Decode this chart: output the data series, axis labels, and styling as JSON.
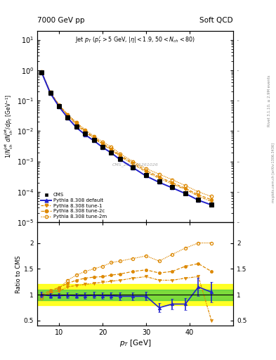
{
  "title_left": "7000 GeV pp",
  "title_right": "Soft QCD",
  "cms_label": "CMS_2013_I1261026",
  "rivet_label": "Rivet 3.1.10, ≥ 2.9M events",
  "mcplots_label": "mcplots.cern.ch [arXiv:1306.3436]",
  "xlabel": "p_{T} [GeV]",
  "ylabel_main": "1/N_{ch}^{jet} dN_{ch}^{jet}/dp_{T} [GeV^{-1}]",
  "ylabel_ratio": "Ratio to CMS",
  "annotation": "Jet p_{T} (p_{T}^{l}>5 GeV, |\\eta|<1.9, 50<N_{ch}<80)",
  "cms_x": [
    6,
    8,
    10,
    12,
    14,
    16,
    18,
    20,
    22,
    24,
    27,
    30,
    33,
    36,
    39,
    42,
    45
  ],
  "cms_y": [
    0.85,
    0.18,
    0.065,
    0.028,
    0.014,
    0.008,
    0.005,
    0.003,
    0.002,
    0.0012,
    0.00065,
    0.00035,
    0.00022,
    0.00014,
    9e-05,
    5.5e-05,
    3.8e-05
  ],
  "cms_yerr": [
    0.04,
    0.009,
    0.003,
    0.0015,
    0.0007,
    0.0004,
    0.00025,
    0.00015,
    0.0001,
    6e-05,
    3e-05,
    2e-05,
    1.2e-05,
    8e-06,
    5e-06,
    3e-06,
    2e-06
  ],
  "py_default_x": [
    6,
    8,
    10,
    12,
    14,
    16,
    18,
    20,
    22,
    24,
    27,
    30,
    33,
    36,
    39,
    42,
    45
  ],
  "py_default_y": [
    0.84,
    0.175,
    0.063,
    0.027,
    0.013,
    0.0075,
    0.0048,
    0.0029,
    0.0019,
    0.00115,
    0.00062,
    0.00033,
    0.000205,
    0.000135,
    8.8e-05,
    5.3e-05,
    3.7e-05
  ],
  "py_tune1_x": [
    6,
    8,
    10,
    12,
    14,
    16,
    18,
    20,
    22,
    24,
    27,
    30,
    33,
    36,
    39,
    42,
    45
  ],
  "py_tune1_y": [
    0.86,
    0.185,
    0.068,
    0.032,
    0.016,
    0.0092,
    0.0058,
    0.0036,
    0.0024,
    0.00145,
    0.00082,
    0.00045,
    0.00028,
    0.00018,
    0.00012,
    7.2e-05,
    4.8e-05
  ],
  "py_tune2c_x": [
    6,
    8,
    10,
    12,
    14,
    16,
    18,
    20,
    22,
    24,
    27,
    30,
    33,
    36,
    39,
    42,
    45
  ],
  "py_tune2c_y": [
    0.88,
    0.19,
    0.072,
    0.034,
    0.018,
    0.01,
    0.0062,
    0.0039,
    0.0026,
    0.00158,
    0.0009,
    0.0005,
    0.00031,
    0.0002,
    0.00013,
    8e-05,
    5.5e-05
  ],
  "py_tune2m_x": [
    6,
    8,
    10,
    12,
    14,
    16,
    18,
    20,
    22,
    24,
    27,
    30,
    33,
    36,
    39,
    42,
    45
  ],
  "py_tune2m_y": [
    0.87,
    0.185,
    0.07,
    0.035,
    0.019,
    0.011,
    0.0068,
    0.0044,
    0.003,
    0.0018,
    0.001,
    0.00058,
    0.00038,
    0.00025,
    0.00016,
    0.0001,
    7e-05
  ],
  "ratio_x": [
    6,
    8,
    10,
    12,
    14,
    16,
    18,
    20,
    22,
    24,
    27,
    30,
    33,
    36,
    39,
    42,
    45
  ],
  "ratio_default": [
    1.0,
    0.98,
    0.98,
    0.99,
    0.98,
    0.98,
    0.99,
    0.98,
    0.98,
    0.97,
    0.97,
    0.97,
    0.75,
    0.82,
    0.82,
    1.15,
    1.05
  ],
  "ratio_default_err": [
    0.05,
    0.05,
    0.05,
    0.05,
    0.05,
    0.06,
    0.06,
    0.06,
    0.06,
    0.07,
    0.07,
    0.08,
    0.09,
    0.1,
    0.12,
    0.18,
    0.2
  ],
  "ratio_tune1": [
    0.96,
    1.04,
    1.07,
    1.15,
    1.18,
    1.2,
    1.22,
    1.24,
    1.26,
    1.28,
    1.32,
    1.35,
    1.28,
    1.28,
    1.32,
    1.35,
    0.5
  ],
  "ratio_tune2c": [
    1.0,
    1.08,
    1.14,
    1.22,
    1.28,
    1.32,
    1.34,
    1.35,
    1.38,
    1.4,
    1.45,
    1.48,
    1.42,
    1.45,
    1.55,
    1.6,
    1.45
  ],
  "ratio_tune2m": [
    0.94,
    1.06,
    1.12,
    1.28,
    1.38,
    1.45,
    1.5,
    1.55,
    1.62,
    1.65,
    1.7,
    1.75,
    1.65,
    1.78,
    1.9,
    2.0,
    2.0
  ],
  "cms_color": "#000000",
  "default_color": "#2222cc",
  "tune_color": "#dd8800",
  "green_band_y1": 0.9,
  "green_band_y2": 1.1,
  "yellow_band_y1": 0.8,
  "yellow_band_y2": 1.2,
  "xlim": [
    5,
    50
  ],
  "ylim_main": [
    1e-05,
    20
  ],
  "ylim_ratio": [
    0.4,
    2.4
  ],
  "xticks": [
    10,
    20,
    30,
    40
  ],
  "yticks_ratio": [
    0.5,
    1.0,
    1.5,
    2.0
  ]
}
